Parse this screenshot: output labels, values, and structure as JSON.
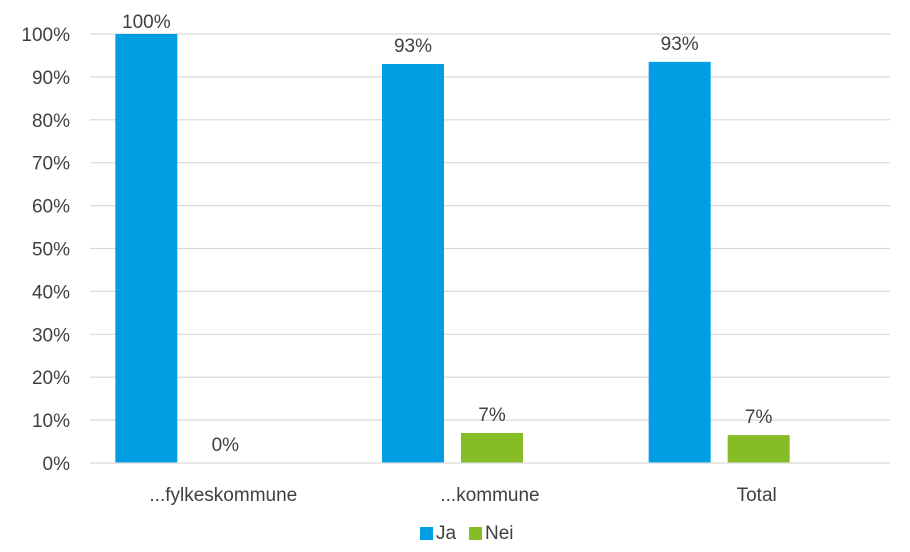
{
  "chart_data": {
    "type": "bar",
    "categories": [
      "...fylkeskommune",
      "...kommune",
      "Total"
    ],
    "series": [
      {
        "name": "Ja",
        "values": [
          100,
          93,
          93.5
        ],
        "labels": [
          "100%",
          "93%",
          "93%"
        ],
        "color": "#009fe3"
      },
      {
        "name": "Nei",
        "values": [
          0,
          7,
          6.5
        ],
        "labels": [
          "0%",
          "7%",
          "7%"
        ],
        "color": "#86bc25"
      }
    ],
    "ylim": [
      0,
      100
    ],
    "yticks": [
      0,
      10,
      20,
      30,
      40,
      50,
      60,
      70,
      80,
      90,
      100
    ],
    "ytick_labels": [
      "0%",
      "10%",
      "20%",
      "30%",
      "40%",
      "50%",
      "60%",
      "70%",
      "80%",
      "90%",
      "100%"
    ],
    "grid": true,
    "gridline_color": "#d9d9d9",
    "legend_position": "bottom"
  }
}
